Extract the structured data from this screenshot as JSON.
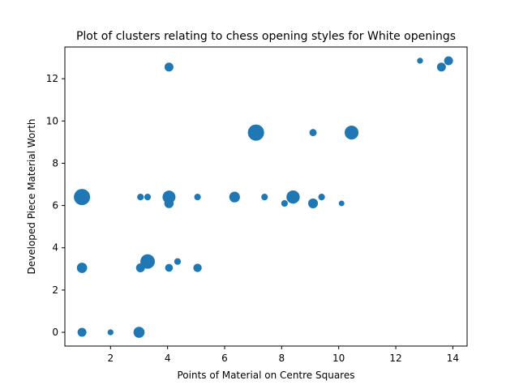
{
  "chart_data": {
    "type": "scatter",
    "title": "Plot of clusters relating to chess opening styles for White openings",
    "xlabel": "Points of Material on Centre Squares",
    "ylabel": "Developed Piece Material Worth",
    "xlim": [
      0.4,
      14.5
    ],
    "ylim": [
      -0.65,
      13.5
    ],
    "xticks": [
      2,
      4,
      6,
      8,
      10,
      12,
      14
    ],
    "yticks": [
      0,
      2,
      4,
      6,
      8,
      10,
      12
    ],
    "grid": false,
    "legend": "none",
    "color": "#1f77b4",
    "points": [
      {
        "x": 1.0,
        "y": 6.4,
        "size": 150
      },
      {
        "x": 1.0,
        "y": 3.05,
        "size": 60
      },
      {
        "x": 1.0,
        "y": 0.0,
        "size": 45
      },
      {
        "x": 2.0,
        "y": 0.0,
        "size": 20
      },
      {
        "x": 3.0,
        "y": 0.0,
        "size": 70
      },
      {
        "x": 3.05,
        "y": 6.4,
        "size": 25
      },
      {
        "x": 3.05,
        "y": 3.05,
        "size": 45
      },
      {
        "x": 3.3,
        "y": 6.4,
        "size": 25
      },
      {
        "x": 3.3,
        "y": 3.35,
        "size": 120
      },
      {
        "x": 4.05,
        "y": 12.55,
        "size": 45
      },
      {
        "x": 4.05,
        "y": 6.4,
        "size": 95
      },
      {
        "x": 4.05,
        "y": 6.1,
        "size": 50
      },
      {
        "x": 4.05,
        "y": 3.05,
        "size": 35
      },
      {
        "x": 4.35,
        "y": 3.35,
        "size": 25
      },
      {
        "x": 5.05,
        "y": 6.4,
        "size": 25
      },
      {
        "x": 5.05,
        "y": 3.05,
        "size": 40
      },
      {
        "x": 6.35,
        "y": 6.4,
        "size": 65
      },
      {
        "x": 7.1,
        "y": 9.45,
        "size": 150
      },
      {
        "x": 7.4,
        "y": 6.4,
        "size": 25
      },
      {
        "x": 8.1,
        "y": 6.1,
        "size": 25
      },
      {
        "x": 8.4,
        "y": 6.4,
        "size": 100
      },
      {
        "x": 9.1,
        "y": 9.45,
        "size": 30
      },
      {
        "x": 9.1,
        "y": 6.1,
        "size": 55
      },
      {
        "x": 9.4,
        "y": 6.4,
        "size": 25
      },
      {
        "x": 10.1,
        "y": 6.1,
        "size": 18
      },
      {
        "x": 10.45,
        "y": 9.45,
        "size": 110
      },
      {
        "x": 12.85,
        "y": 12.85,
        "size": 20
      },
      {
        "x": 13.6,
        "y": 12.55,
        "size": 45
      },
      {
        "x": 13.85,
        "y": 12.85,
        "size": 45
      }
    ]
  }
}
